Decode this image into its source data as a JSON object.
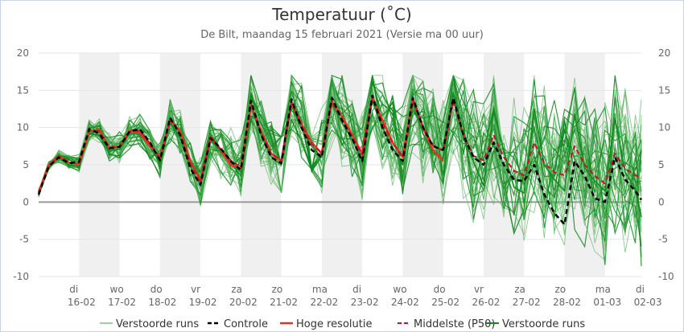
{
  "title": "Temperatuur (˚C)",
  "subtitle": "De Bilt, maandag 15 februari 2021 (Versie ma 00 uur)",
  "colors": {
    "ensemble": "#59b25e",
    "control": "#000000",
    "highres": "#e8321e",
    "median": "#c8102e",
    "ensemble_dark": "#118a1f",
    "weekend_band": "#f0f0f0",
    "zero_line": "#999999"
  },
  "chart_data": {
    "type": "line",
    "ylim": [
      -10,
      20
    ],
    "y_ticks": [
      -10,
      -5,
      0,
      5,
      10,
      15,
      20
    ],
    "x_range": [
      0,
      14.9
    ],
    "x_ticks": [
      {
        "x": 1,
        "day": "di",
        "date": "16-02"
      },
      {
        "x": 2,
        "day": "wo",
        "date": "17-02"
      },
      {
        "x": 3,
        "day": "do",
        "date": "18-02"
      },
      {
        "x": 4,
        "day": "vr",
        "date": "19-02"
      },
      {
        "x": 5,
        "day": "za",
        "date": "20-02"
      },
      {
        "x": 6,
        "day": "zo",
        "date": "21-02"
      },
      {
        "x": 7,
        "day": "ma",
        "date": "22-02"
      },
      {
        "x": 8,
        "day": "di",
        "date": "23-02"
      },
      {
        "x": 9,
        "day": "wo",
        "date": "24-02"
      },
      {
        "x": 10,
        "day": "do",
        "date": "25-02"
      },
      {
        "x": 11,
        "day": "vr",
        "date": "26-02"
      },
      {
        "x": 12,
        "day": "za",
        "date": "27-02"
      },
      {
        "x": 13,
        "day": "zo",
        "date": "28-02"
      },
      {
        "x": 14,
        "day": "ma",
        "date": "01-03"
      },
      {
        "x": 15,
        "day": "di",
        "date": "02-03"
      }
    ],
    "shaded_days": [
      [
        1,
        2
      ],
      [
        3,
        4
      ],
      [
        5,
        6
      ],
      [
        7,
        8
      ],
      [
        9,
        10
      ],
      [
        11,
        12
      ],
      [
        13,
        14
      ]
    ],
    "legend": [
      {
        "label": "Verstoorde runs",
        "style": "ensemble"
      },
      {
        "label": "Controle",
        "style": "control"
      },
      {
        "label": "Hoge resolutie",
        "style": "highres"
      },
      {
        "label": "Middelste (P50)",
        "style": "median"
      },
      {
        "label": "Verstoorde runs",
        "style": "ensemble_dark"
      }
    ],
    "series": [
      {
        "name": "Controle",
        "x": [
          0,
          0.25,
          0.5,
          0.75,
          1,
          1.25,
          1.5,
          1.75,
          2,
          2.25,
          2.5,
          2.75,
          3,
          3.25,
          3.5,
          3.75,
          4,
          4.25,
          4.5,
          4.75,
          5,
          5.25,
          5.5,
          5.75,
          6,
          6.25,
          6.5,
          6.75,
          7,
          7.25,
          7.5,
          7.75,
          8,
          8.25,
          8.5,
          8.75,
          9,
          9.25,
          9.5,
          9.75,
          10,
          10.25,
          10.5,
          10.75,
          11,
          11.25,
          11.5,
          11.75,
          12,
          12.25,
          12.5,
          12.75,
          13,
          13.25,
          13.5,
          13.75,
          14,
          14.25,
          14.5,
          14.75,
          14.9
        ],
        "y": [
          1.0,
          4.8,
          6.0,
          5.2,
          5.4,
          9.8,
          9.2,
          7.2,
          7.4,
          9.5,
          9.8,
          8.0,
          5.6,
          11.3,
          9.0,
          4.5,
          2.3,
          8.6,
          7.2,
          5.5,
          4.3,
          13.6,
          9.0,
          6.0,
          5.2,
          13.8,
          10.0,
          7.0,
          6.0,
          14.0,
          11.0,
          8.5,
          5.5,
          14.3,
          10.0,
          7.0,
          5.5,
          14.0,
          10.0,
          7.5,
          7.0,
          14.0,
          9.0,
          6.0,
          5.0,
          8.0,
          5.0,
          3.0,
          2.8,
          5.0,
          1.0,
          -1.5,
          -3.0,
          5.5,
          3.5,
          0.5,
          0.0,
          6.0,
          3.0,
          1.5,
          0.3
        ]
      },
      {
        "name": "Hoge resolutie",
        "x": [
          0,
          0.25,
          0.5,
          0.75,
          1,
          1.25,
          1.5,
          1.75,
          2,
          2.25,
          2.5,
          2.75,
          3,
          3.25,
          3.5,
          3.75,
          4,
          4.25,
          4.5,
          4.75,
          5,
          5.25,
          5.5,
          5.75,
          6,
          6.25,
          6.5,
          6.75,
          7,
          7.25,
          7.5,
          7.75,
          8,
          8.25,
          8.5,
          8.75,
          9,
          9.25,
          9.5,
          9.75,
          10
        ],
        "y": [
          1.3,
          5.0,
          6.2,
          5.3,
          5.1,
          9.5,
          9.7,
          7.2,
          7.5,
          9.6,
          9.3,
          7.5,
          6.0,
          11.0,
          9.5,
          5.5,
          2.8,
          8.8,
          7.0,
          5.0,
          4.5,
          13.0,
          9.5,
          6.5,
          5.5,
          13.3,
          10.5,
          8.0,
          6.5,
          13.5,
          11.5,
          9.0,
          6.5,
          14.0,
          11.0,
          8.0,
          6.0,
          13.8,
          10.0,
          7.0,
          5.5
        ]
      },
      {
        "name": "Middelste (P50)",
        "x": [
          0,
          0.25,
          0.5,
          0.75,
          1,
          1.25,
          1.5,
          1.75,
          2,
          2.25,
          2.5,
          2.75,
          3,
          3.25,
          3.5,
          3.75,
          4,
          4.25,
          4.5,
          4.75,
          5,
          5.25,
          5.5,
          5.75,
          6,
          6.25,
          6.5,
          6.75,
          7,
          7.25,
          7.5,
          7.75,
          8,
          8.25,
          8.5,
          8.75,
          9,
          9.25,
          9.5,
          9.75,
          10,
          10.25,
          10.5,
          10.75,
          11,
          11.25,
          11.5,
          11.75,
          12,
          12.25,
          12.5,
          12.75,
          13,
          13.25,
          13.5,
          13.75,
          14,
          14.25,
          14.5,
          14.75,
          14.9
        ],
        "y": [
          1.2,
          4.9,
          6.1,
          5.4,
          5.2,
          9.6,
          9.5,
          7.4,
          7.4,
          9.4,
          9.6,
          7.9,
          5.8,
          11.1,
          9.2,
          5.2,
          2.6,
          8.7,
          7.1,
          5.6,
          4.7,
          13.2,
          9.3,
          6.5,
          5.6,
          13.4,
          10.3,
          7.8,
          6.6,
          13.6,
          11.0,
          8.8,
          6.3,
          14.0,
          10.6,
          7.9,
          6.1,
          13.8,
          10.1,
          7.6,
          6.9,
          13.5,
          9.0,
          6.2,
          5.6,
          9.0,
          6.0,
          4.2,
          3.6,
          8.0,
          5.2,
          4.0,
          3.6,
          7.5,
          5.0,
          3.5,
          2.5,
          6.5,
          4.5,
          3.6,
          3.2
        ]
      },
      {
        "name": "Verstoorde runs",
        "x": [
          0,
          0.25,
          0.5,
          0.75,
          1,
          1.25,
          1.5,
          1.75,
          2,
          2.25,
          2.5,
          2.75,
          3,
          3.25,
          3.5,
          3.75,
          4,
          4.25,
          4.5,
          4.75,
          5,
          5.25,
          5.5,
          5.75,
          6,
          6.25,
          6.5,
          6.75,
          7,
          7.25,
          7.5,
          7.75,
          8,
          8.25,
          8.5,
          8.75,
          9,
          9.25,
          9.5,
          9.75,
          10,
          10.25,
          10.5,
          10.75,
          11,
          11.25,
          11.5,
          11.75,
          12,
          12.25,
          12.5,
          12.75,
          13,
          13.25,
          13.5,
          13.75,
          14,
          14.25,
          14.5,
          14.75,
          14.9
        ],
        "y": [
          1.0,
          4.7,
          5.9,
          5.0,
          4.8,
          9.2,
          9.0,
          6.9,
          7.1,
          9.2,
          9.1,
          7.4,
          5.2,
          10.6,
          8.6,
          4.8,
          2.2,
          8.3,
          6.8,
          5.4,
          4.0,
          12.8,
          8.9,
          6.1,
          5.0,
          13.0,
          9.8,
          7.5,
          6.0,
          13.2,
          10.6,
          8.4,
          5.5,
          13.5,
          10.0,
          7.4,
          5.0,
          13.2,
          9.2,
          6.6,
          5.8,
          14.6,
          8.6,
          5.4,
          2.2,
          12.2,
          6.8,
          2.0,
          1.2,
          12.5,
          5.0,
          3.0,
          1.5,
          11.8,
          4.6,
          2.8,
          1.5,
          11.3,
          4.0,
          1.8,
          -2.0
        ]
      }
    ]
  }
}
